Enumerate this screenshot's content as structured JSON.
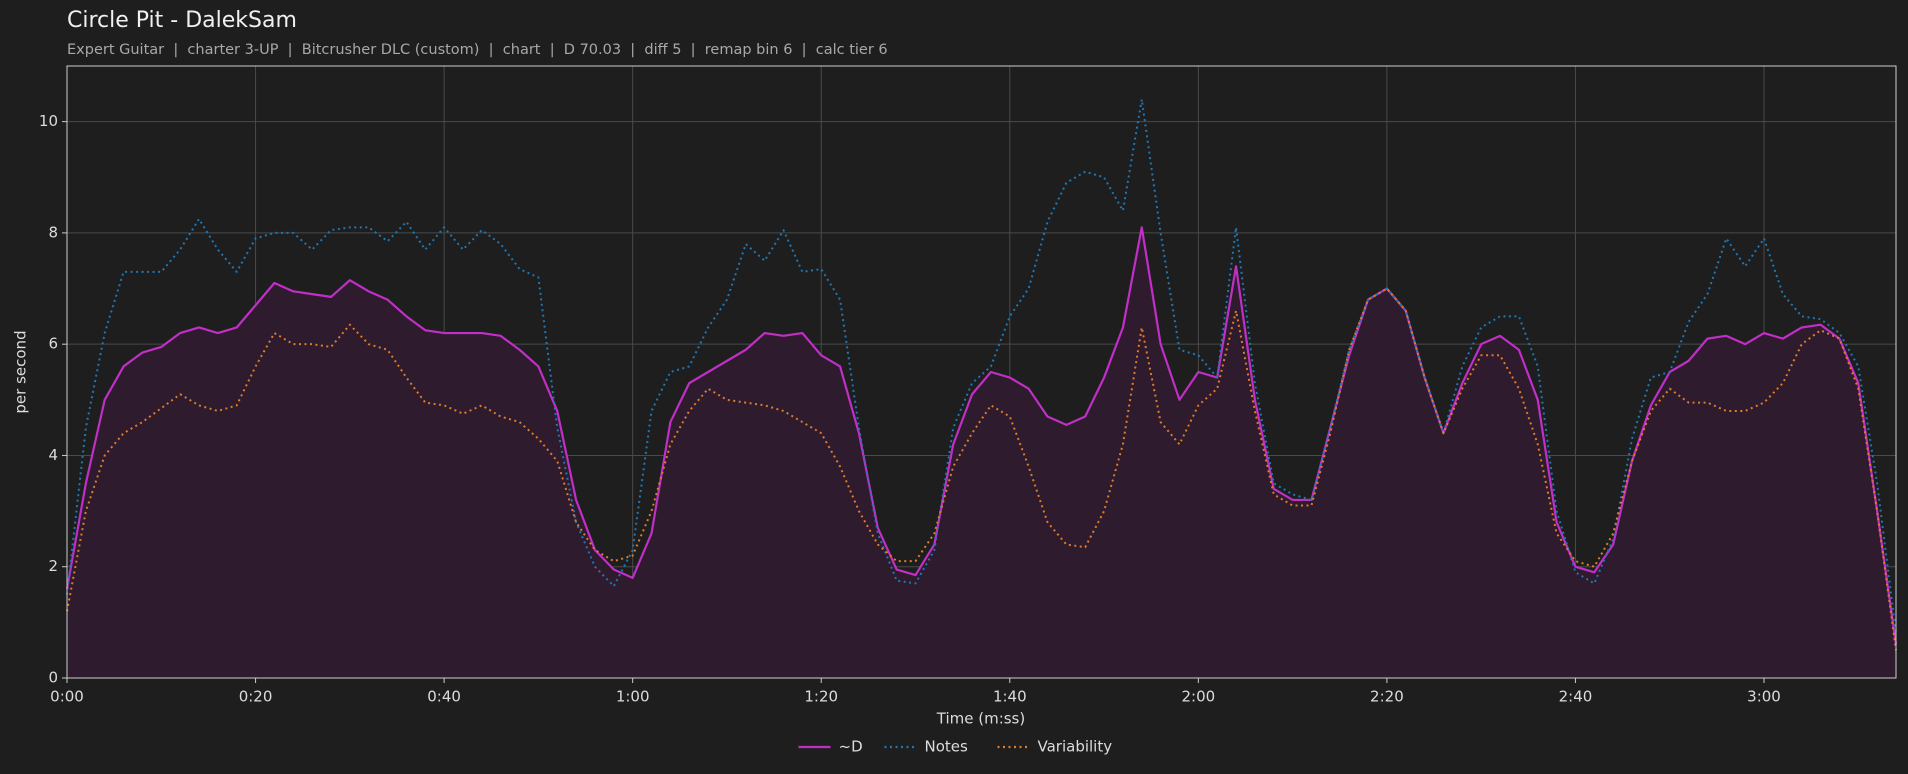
{
  "chart_data": {
    "type": "line",
    "title": "Circle Pit - DalekSam",
    "subtitle": "Expert Guitar  |  charter 3-UP  |  Bitcrusher DLC (custom)  |  chart  |  D 70.03  |  diff 5  |  remap bin 6  |  calc tier 6",
    "xlabel": "Time (m:ss)",
    "ylabel": "per second",
    "x": [
      0,
      2,
      4,
      6,
      8,
      10,
      12,
      14,
      16,
      18,
      20,
      22,
      24,
      26,
      28,
      30,
      32,
      34,
      36,
      38,
      40,
      42,
      44,
      46,
      48,
      50,
      52,
      54,
      56,
      58,
      60,
      62,
      64,
      66,
      68,
      70,
      72,
      74,
      76,
      78,
      80,
      82,
      84,
      86,
      88,
      90,
      92,
      94,
      96,
      98,
      100,
      102,
      104,
      106,
      108,
      110,
      112,
      114,
      116,
      118,
      120,
      122,
      124,
      126,
      128,
      130,
      132,
      134,
      136,
      138,
      140,
      142,
      144,
      146,
      148,
      150,
      152,
      154,
      156,
      158,
      160,
      162,
      164,
      166,
      168,
      170,
      172,
      174,
      176,
      178,
      180,
      182,
      184,
      186,
      188,
      190,
      192,
      194
    ],
    "series": [
      {
        "name": "~D",
        "color": "#c02fc6",
        "linestyle": "solid",
        "fill": true,
        "fill_color": "#2e1b2e",
        "values": [
          1.6,
          3.5,
          5.0,
          5.6,
          5.85,
          5.95,
          6.2,
          6.3,
          6.2,
          6.3,
          6.7,
          7.1,
          6.95,
          6.9,
          6.85,
          7.15,
          6.95,
          6.8,
          6.5,
          6.25,
          6.2,
          6.2,
          6.2,
          6.15,
          5.9,
          5.6,
          4.8,
          3.2,
          2.3,
          1.95,
          1.8,
          2.6,
          4.6,
          5.3,
          5.5,
          5.7,
          5.9,
          6.2,
          6.15,
          6.2,
          5.8,
          5.6,
          4.4,
          2.7,
          1.95,
          1.85,
          2.4,
          4.2,
          5.1,
          5.5,
          5.4,
          5.2,
          4.7,
          4.55,
          4.7,
          5.4,
          6.3,
          8.1,
          6.0,
          5.0,
          5.5,
          5.4,
          7.4,
          5.0,
          3.4,
          3.2,
          3.2,
          4.5,
          5.8,
          6.8,
          7.0,
          6.6,
          5.4,
          4.4,
          5.3,
          6.0,
          6.15,
          5.9,
          5.0,
          2.8,
          2.0,
          1.9,
          2.4,
          3.9,
          4.9,
          5.5,
          5.7,
          6.1,
          6.15,
          6.0,
          6.2,
          6.1,
          6.3,
          6.35,
          6.1,
          5.3,
          3.0,
          0.6
        ]
      },
      {
        "name": "Notes",
        "color": "#1f77b4",
        "linestyle": "dotted",
        "fill": false,
        "values": [
          1.5,
          4.5,
          6.2,
          7.3,
          7.3,
          7.3,
          7.7,
          8.25,
          7.7,
          7.3,
          7.9,
          8.0,
          8.0,
          7.7,
          8.05,
          8.1,
          8.1,
          7.85,
          8.2,
          7.7,
          8.1,
          7.7,
          8.05,
          7.8,
          7.35,
          7.2,
          4.5,
          2.8,
          2.0,
          1.65,
          2.3,
          4.8,
          5.5,
          5.6,
          6.3,
          6.8,
          7.8,
          7.5,
          8.05,
          7.3,
          7.35,
          6.8,
          4.5,
          2.6,
          1.75,
          1.7,
          2.3,
          4.5,
          5.3,
          5.6,
          6.5,
          7.0,
          8.2,
          8.9,
          9.1,
          9.0,
          8.4,
          10.4,
          8.0,
          5.9,
          5.8,
          5.4,
          8.1,
          5.3,
          3.5,
          3.3,
          3.2,
          4.5,
          5.9,
          6.8,
          7.0,
          6.6,
          5.4,
          4.4,
          5.6,
          6.3,
          6.5,
          6.5,
          5.6,
          3.0,
          1.9,
          1.7,
          2.5,
          4.3,
          5.4,
          5.5,
          6.4,
          6.9,
          7.9,
          7.4,
          7.9,
          6.9,
          6.5,
          6.45,
          6.2,
          5.6,
          3.5,
          0.8
        ]
      },
      {
        "name": "Variability",
        "color": "#e07b28",
        "linestyle": "dotted",
        "fill": false,
        "values": [
          1.2,
          3.0,
          4.0,
          4.4,
          4.6,
          4.85,
          5.1,
          4.9,
          4.8,
          4.9,
          5.6,
          6.2,
          6.0,
          6.0,
          5.95,
          6.35,
          6.0,
          5.9,
          5.4,
          4.95,
          4.9,
          4.75,
          4.9,
          4.7,
          4.6,
          4.3,
          3.9,
          2.8,
          2.3,
          2.1,
          2.2,
          3.0,
          4.2,
          4.8,
          5.2,
          5.0,
          4.95,
          4.9,
          4.8,
          4.6,
          4.4,
          3.8,
          3.0,
          2.4,
          2.1,
          2.1,
          2.6,
          3.8,
          4.4,
          4.9,
          4.7,
          3.8,
          2.8,
          2.4,
          2.35,
          3.0,
          4.2,
          6.3,
          4.6,
          4.2,
          4.9,
          5.2,
          6.6,
          4.8,
          3.3,
          3.1,
          3.1,
          4.4,
          5.9,
          6.8,
          7.0,
          6.6,
          5.4,
          4.4,
          5.2,
          5.8,
          5.8,
          5.2,
          4.2,
          2.6,
          2.1,
          2.0,
          2.6,
          3.9,
          4.8,
          5.2,
          4.95,
          4.95,
          4.8,
          4.8,
          4.95,
          5.3,
          6.0,
          6.25,
          6.1,
          5.2,
          3.0,
          0.5
        ]
      }
    ],
    "xlim": [
      0,
      194
    ],
    "xticks": [
      {
        "value": 0,
        "label": "0:00"
      },
      {
        "value": 20,
        "label": "0:20"
      },
      {
        "value": 40,
        "label": "0:40"
      },
      {
        "value": 60,
        "label": "1:00"
      },
      {
        "value": 80,
        "label": "1:20"
      },
      {
        "value": 100,
        "label": "1:40"
      },
      {
        "value": 120,
        "label": "2:00"
      },
      {
        "value": 140,
        "label": "2:20"
      },
      {
        "value": 160,
        "label": "2:40"
      },
      {
        "value": 180,
        "label": "3:00"
      }
    ],
    "ylim": [
      0,
      11
    ],
    "yticks": [
      0,
      2,
      4,
      6,
      8,
      10
    ],
    "grid": true,
    "legend": "bottom"
  }
}
